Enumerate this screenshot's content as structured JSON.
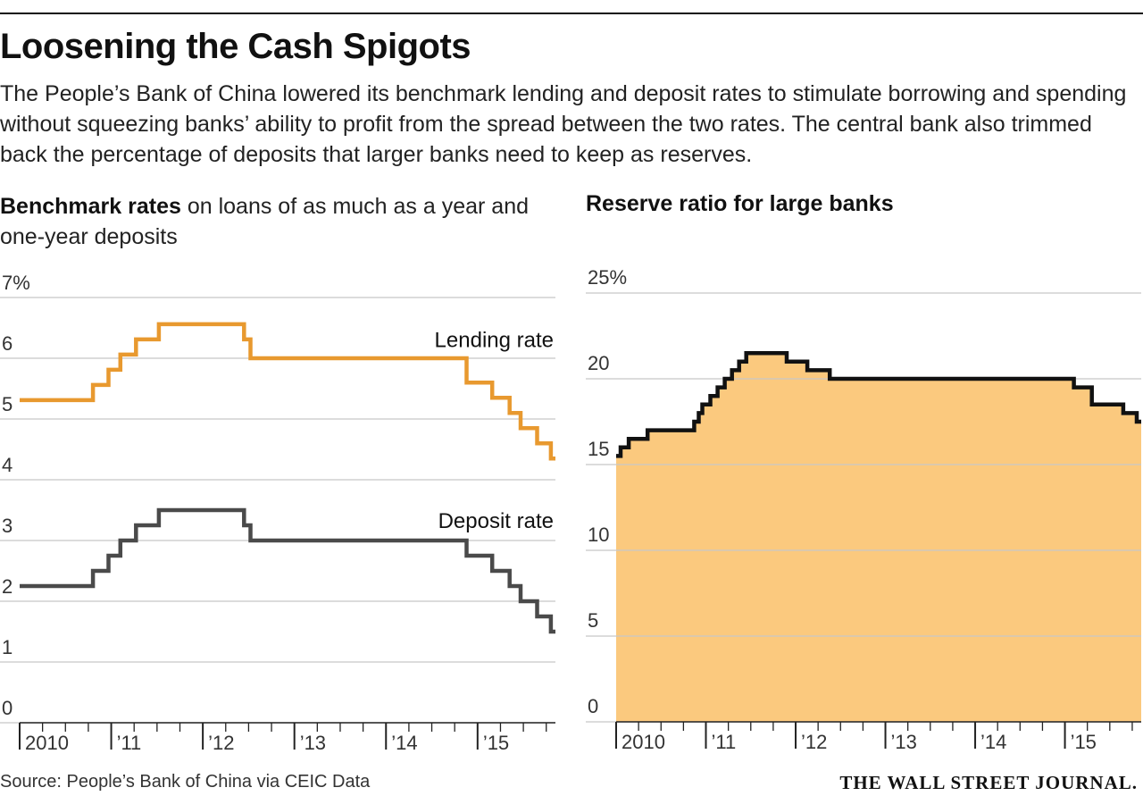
{
  "header": {
    "title": "Loosening the Cash Spigots",
    "subtitle": "The People’s Bank of China lowered its benchmark lending and deposit rates to stimulate borrowing and spending without squeezing banks’ ability to profit from the spread between the two rates. The central bank also trimmed back the percentage of deposits that larger banks need to keep as reserves."
  },
  "left_chart": {
    "title_bold": "Benchmark rates",
    "title_rest": " on loans of as much as a year and one-year deposits"
  },
  "right_chart": {
    "title": "Reserve ratio for large banks"
  },
  "footer": {
    "source": "Source: People’s Bank of China via CEIC Data",
    "brand": "THE WALL STREET JOURNAL."
  },
  "colors": {
    "lending": "#e8992f",
    "deposit": "#4a4a4a",
    "reserve_line": "#111111",
    "reserve_fill": "#fbc97e",
    "grid": "#c8c8c8"
  },
  "chart_data": [
    {
      "type": "line",
      "step": true,
      "title": "Benchmark rates on loans of as much as a year and one-year deposits",
      "ylim": [
        0,
        7
      ],
      "xlim": [
        2010.0,
        2015.85
      ],
      "y_ticks": [
        0,
        1,
        2,
        3,
        4,
        5,
        6,
        7
      ],
      "y_tick_labels": [
        "0",
        "1",
        "2",
        "3",
        "4",
        "5",
        "6",
        "7%"
      ],
      "x_ticks": [
        2010,
        2011,
        2012,
        2013,
        2014,
        2015
      ],
      "x_tick_labels": [
        "2010",
        "’11",
        "’12",
        "’13",
        "’14",
        "’15"
      ],
      "series": [
        {
          "name": "Lending rate",
          "x": [
            2010.0,
            2010.8,
            2010.97,
            2011.1,
            2011.27,
            2011.52,
            2012.45,
            2012.52,
            2014.88,
            2015.16,
            2015.35,
            2015.47,
            2015.65,
            2015.8,
            2015.85
          ],
          "y": [
            5.31,
            5.56,
            5.81,
            6.06,
            6.31,
            6.56,
            6.31,
            6.0,
            5.6,
            5.35,
            5.1,
            4.85,
            4.6,
            4.35,
            4.35
          ]
        },
        {
          "name": "Deposit rate",
          "x": [
            2010.0,
            2010.8,
            2010.97,
            2011.1,
            2011.27,
            2011.52,
            2012.45,
            2012.52,
            2014.88,
            2015.16,
            2015.35,
            2015.47,
            2015.65,
            2015.8,
            2015.85
          ],
          "y": [
            2.25,
            2.5,
            2.75,
            3.0,
            3.25,
            3.5,
            3.25,
            3.0,
            2.75,
            2.5,
            2.25,
            2.0,
            1.75,
            1.5,
            1.5
          ]
        }
      ]
    },
    {
      "type": "area",
      "step": true,
      "title": "Reserve ratio for large banks",
      "ylim": [
        0,
        25
      ],
      "xlim": [
        2010.0,
        2015.85
      ],
      "y_ticks": [
        0,
        5,
        10,
        15,
        20,
        25
      ],
      "y_tick_labels": [
        "0",
        "5",
        "10",
        "15",
        "20",
        "25%"
      ],
      "x_ticks": [
        2010,
        2011,
        2012,
        2013,
        2014,
        2015
      ],
      "x_tick_labels": [
        "2010",
        "’11",
        "’12",
        "’13",
        "’14",
        "’15"
      ],
      "series": [
        {
          "name": "Reserve ratio",
          "x": [
            2010.0,
            2010.05,
            2010.14,
            2010.35,
            2010.87,
            2010.92,
            2010.96,
            2011.05,
            2011.13,
            2011.21,
            2011.29,
            2011.37,
            2011.45,
            2011.9,
            2012.13,
            2012.38,
            2015.1,
            2015.3,
            2015.65,
            2015.8,
            2015.85
          ],
          "y": [
            15.5,
            16.0,
            16.5,
            17.0,
            17.5,
            18.0,
            18.5,
            19.0,
            19.5,
            20.0,
            20.5,
            21.0,
            21.5,
            21.0,
            20.5,
            20.0,
            19.5,
            18.5,
            18.0,
            17.5,
            17.5
          ]
        }
      ]
    }
  ]
}
